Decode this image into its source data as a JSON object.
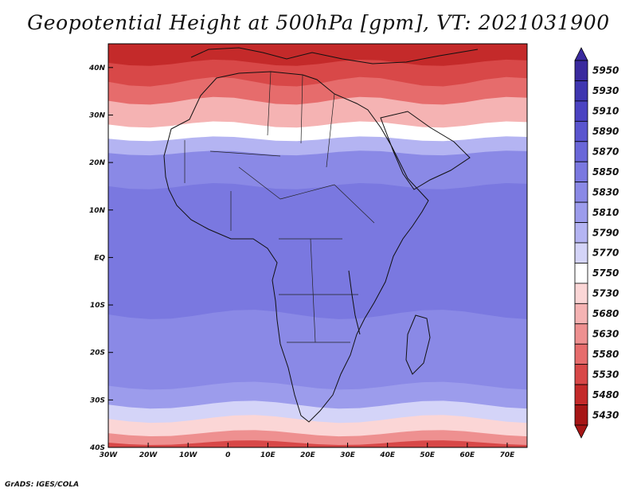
{
  "title": "Geopotential Height at 500hPa [gpm], VT: 2021031900",
  "credit": "GrADS: IGES/COLA",
  "map": {
    "lon_range": [
      -30,
      75
    ],
    "lat_range": [
      -40,
      45
    ],
    "lat_ticks": [
      {
        "value": 40,
        "label": "40N"
      },
      {
        "value": 30,
        "label": "30N"
      },
      {
        "value": 20,
        "label": "20N"
      },
      {
        "value": 10,
        "label": "10N"
      },
      {
        "value": 0,
        "label": "EQ"
      },
      {
        "value": -10,
        "label": "10S"
      },
      {
        "value": -20,
        "label": "20S"
      },
      {
        "value": -30,
        "label": "30S"
      },
      {
        "value": -40,
        "label": "40S"
      }
    ],
    "lon_ticks": [
      {
        "value": -30,
        "label": "30W"
      },
      {
        "value": -20,
        "label": "20W"
      },
      {
        "value": -10,
        "label": "10W"
      },
      {
        "value": 0,
        "label": "0"
      },
      {
        "value": 10,
        "label": "10E"
      },
      {
        "value": 20,
        "label": "20E"
      },
      {
        "value": 30,
        "label": "30E"
      },
      {
        "value": 40,
        "label": "40E"
      },
      {
        "value": 50,
        "label": "50E"
      },
      {
        "value": 60,
        "label": "60E"
      },
      {
        "value": 70,
        "label": "70E"
      }
    ]
  },
  "colorbar": {
    "levels": [
      "5950",
      "5930",
      "5910",
      "5890",
      "5870",
      "5850",
      "5830",
      "5810",
      "5790",
      "5770",
      "5750",
      "5730",
      "5680",
      "5630",
      "5580",
      "5530",
      "5480",
      "5430"
    ],
    "colors": [
      "#3a2a9e",
      "#3f36b0",
      "#4b43c2",
      "#5a55cf",
      "#6a67d9",
      "#7a78e0",
      "#8a89e6",
      "#9c9cec",
      "#b4b4f2",
      "#d4d4f8",
      "#ffffff",
      "#fbd6d6",
      "#f5b3b3",
      "#ee9090",
      "#e66c6c",
      "#d84848",
      "#c42a2a",
      "#a61616"
    ]
  },
  "zone_colors": {
    "z40": "#c42a2a",
    "z35": "#d84848",
    "z30": "#e66c6c",
    "z27": "#f5b3b3",
    "z24": "#ffffff",
    "z20": "#b4b4f2",
    "z15": "#8a89e6",
    "z0": "#7a78e0",
    "s12": "#8a89e6",
    "s27": "#9c9cec",
    "s31": "#d4d4f8",
    "s34": "#fbd6d6",
    "s37": "#ee9090",
    "s39": "#d84848"
  }
}
